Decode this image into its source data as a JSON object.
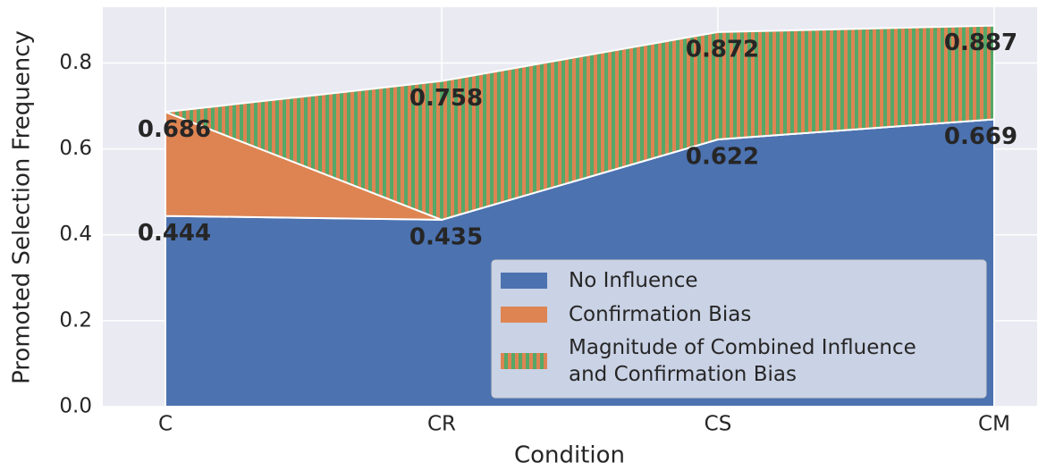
{
  "chart_data": {
    "type": "area",
    "x_label": "Condition",
    "y_label": "Promoted Selection Frequency",
    "categories": [
      "C",
      "CR",
      "CS",
      "CM"
    ],
    "series": [
      {
        "name": "No Influence",
        "color": "#4c72b0",
        "values": [
          0.444,
          0.435,
          0.622,
          0.669
        ],
        "show_labels": true
      },
      {
        "name": "Confirmation Bias",
        "color": "#dd8452",
        "values": [
          0.686,
          0.435,
          0.622,
          0.669
        ],
        "show_labels": false
      },
      {
        "name": "Magnitude of Combined Influence\nand Confirmation Bias",
        "color": "#55a868",
        "hatch_color": "#dd8452",
        "values": [
          0.686,
          0.758,
          0.872,
          0.887
        ],
        "show_labels": true
      }
    ],
    "ylim": [
      0,
      0.93
    ],
    "yticks": [
      {
        "value": 0,
        "label": "0.0"
      },
      {
        "value": 0.2,
        "label": "0.2"
      },
      {
        "value": 0.4,
        "label": "0.4"
      },
      {
        "value": 0.6,
        "label": "0.6"
      },
      {
        "value": 0.8,
        "label": "0.8"
      }
    ],
    "grid": true,
    "legend": "lower right"
  }
}
